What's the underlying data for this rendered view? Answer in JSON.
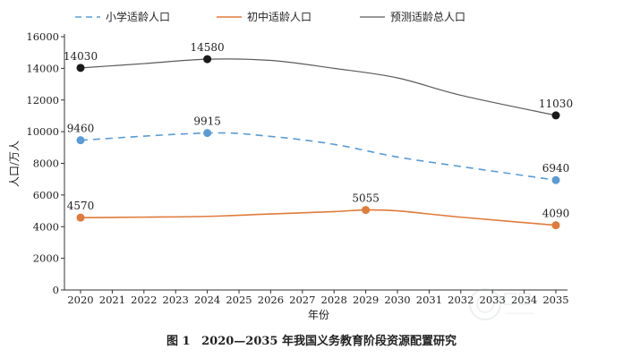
{
  "figure_label": "图 1",
  "caption": "2020—2035 年我国义务教育阶段资源配置研究",
  "colors": {
    "primary": "#5b9bd5",
    "junior": "#e07b3b",
    "total": "#5a5a5a",
    "total_marker": "#1a1a1a"
  },
  "chart_data": {
    "type": "line",
    "x": [
      2020,
      2021,
      2022,
      2023,
      2024,
      2025,
      2026,
      2027,
      2028,
      2029,
      2030,
      2031,
      2032,
      2033,
      2034,
      2035
    ],
    "xlabel": "年份",
    "ylabel": "人口/万人",
    "ylim": [
      0,
      16000
    ],
    "yticks": [
      0,
      2000,
      4000,
      6000,
      8000,
      10000,
      12000,
      14000,
      16000
    ],
    "grid": false,
    "legend_position": "top",
    "series": [
      {
        "name": "小学适龄人口",
        "style": "dashed",
        "x": [
          2020,
          2024,
          2026,
          2028,
          2030,
          2032,
          2035
        ],
        "values": [
          9460,
          9915,
          9700,
          9200,
          8400,
          7800,
          6940
        ],
        "markers": [
          {
            "x": 2020,
            "y": 9460,
            "label": "9460"
          },
          {
            "x": 2024,
            "y": 9915,
            "label": "9915"
          },
          {
            "x": 2035,
            "y": 6940,
            "label": "6940"
          }
        ]
      },
      {
        "name": "初中适龄人口",
        "style": "solid",
        "x": [
          2020,
          2022,
          2024,
          2026,
          2028,
          2029,
          2030,
          2032,
          2035
        ],
        "values": [
          4570,
          4600,
          4650,
          4800,
          4950,
          5055,
          5000,
          4600,
          4090
        ],
        "markers": [
          {
            "x": 2020,
            "y": 4570,
            "label": "4570"
          },
          {
            "x": 2029,
            "y": 5055,
            "label": "5055"
          },
          {
            "x": 2035,
            "y": 4090,
            "label": "4090"
          }
        ]
      },
      {
        "name": "预测适龄总人口",
        "style": "solid",
        "x": [
          2020,
          2022,
          2024,
          2026,
          2028,
          2030,
          2032,
          2035
        ],
        "values": [
          14030,
          14300,
          14580,
          14500,
          14000,
          13400,
          12300,
          11030
        ],
        "markers": [
          {
            "x": 2020,
            "y": 14030,
            "label": "14030"
          },
          {
            "x": 2024,
            "y": 14580,
            "label": "14580"
          },
          {
            "x": 2035,
            "y": 11030,
            "label": "11030"
          }
        ]
      }
    ]
  }
}
